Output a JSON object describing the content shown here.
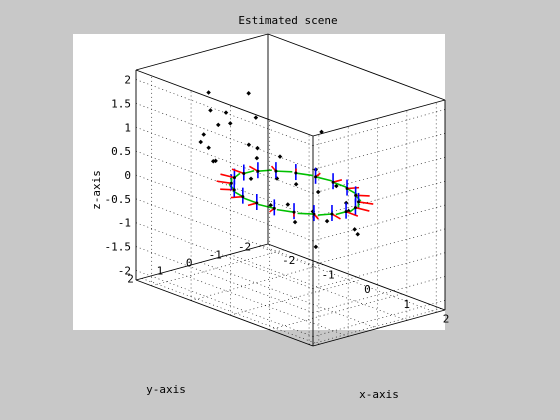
{
  "chart_data": {
    "type": "scatter",
    "title": "Estimated scene",
    "xlabel": "x-axis",
    "ylabel": "y-axis",
    "zlabel": "z-axis",
    "xlim": [
      -2.4,
      2.1
    ],
    "ylim": [
      -2.3,
      2.2
    ],
    "zlim": [
      -2.2,
      2.2
    ],
    "x_ticks": [
      "-2",
      "-1",
      "0",
      "1",
      "2"
    ],
    "y_ticks": [
      "-2",
      "-1",
      "0",
      "1",
      "2"
    ],
    "z_ticks": [
      "-2",
      "-1.5",
      "-1",
      "-0.5",
      "0",
      "0.5",
      "1",
      "1.5",
      "2"
    ],
    "grid": true,
    "series": [
      {
        "marker": "point",
        "color": "#000000",
        "points": [
          [
            -1.3,
            1.2,
            1.9
          ],
          [
            0.2,
            1.6,
            1.9
          ],
          [
            -1.4,
            -0.3,
            1.6
          ],
          [
            -0.6,
            1.4,
            1.5
          ],
          [
            0.9,
            0.3,
            1.6
          ],
          [
            -1.7,
            0.6,
            1.3
          ],
          [
            -1.2,
            1.5,
            1.1
          ],
          [
            -0.5,
            0.9,
            1.0
          ],
          [
            0.3,
            1.7,
            1.1
          ],
          [
            1.2,
            0.9,
            1.0
          ],
          [
            -2.2,
            -0.6,
            0.9
          ],
          [
            -1.8,
            0.2,
            0.9
          ],
          [
            -1.5,
            1.2,
            0.8
          ],
          [
            -1.0,
            1.6,
            0.9
          ],
          [
            -0.6,
            1.9,
            0.8
          ],
          [
            0.3,
            1.9,
            0.7
          ],
          [
            1.0,
            1.3,
            0.7
          ],
          [
            1.5,
            0.6,
            0.7
          ],
          [
            1.9,
            0.8,
            0.5
          ],
          [
            -1.4,
            -0.6,
            0.4
          ],
          [
            -1.2,
            -1.1,
            0.2
          ],
          [
            0.8,
            1.9,
            0.3
          ],
          [
            1.5,
            1.4,
            0.3
          ],
          [
            1.8,
            1.7,
            -0.3
          ],
          [
            -2.3,
            -0.3,
            -0.1
          ],
          [
            -1.5,
            -1.4,
            -0.4
          ],
          [
            -1.3,
            -1.5,
            -0.9
          ],
          [
            -0.9,
            -2.0,
            -0.6
          ],
          [
            -0.2,
            -2.1,
            -0.8
          ],
          [
            0.4,
            -1.5,
            -0.9
          ],
          [
            1.0,
            -0.8,
            -0.7
          ],
          [
            -0.6,
            -1.9,
            -1.1
          ],
          [
            0.6,
            0.8,
            -0.3
          ]
        ]
      },
      {
        "marker": "pose-axes",
        "axis_colors": {
          "red": "#ff0000",
          "green": "#00c000",
          "blue": "#0000ff"
        },
        "ring_points": [
          [
            1.3,
            0.0,
            0.0
          ],
          [
            1.24,
            0.4,
            0.0
          ],
          [
            1.05,
            0.76,
            0.0
          ],
          [
            0.76,
            1.05,
            0.0
          ],
          [
            0.4,
            1.24,
            0.0
          ],
          [
            0.0,
            1.3,
            0.0
          ],
          [
            -0.4,
            1.24,
            0.0
          ],
          [
            -0.76,
            1.05,
            0.0
          ],
          [
            -1.05,
            0.76,
            0.0
          ],
          [
            -1.24,
            0.4,
            0.0
          ],
          [
            -1.3,
            0.0,
            0.0
          ],
          [
            -1.24,
            -0.4,
            0.0
          ],
          [
            -1.05,
            -0.76,
            0.0
          ],
          [
            -0.76,
            -1.05,
            0.0
          ],
          [
            -0.4,
            -1.24,
            0.0
          ],
          [
            0.0,
            -1.3,
            0.0
          ],
          [
            0.4,
            -1.24,
            0.0
          ],
          [
            0.76,
            -1.05,
            0.0
          ],
          [
            1.05,
            -0.76,
            0.0
          ],
          [
            1.24,
            -0.4,
            0.0
          ]
        ]
      }
    ]
  }
}
